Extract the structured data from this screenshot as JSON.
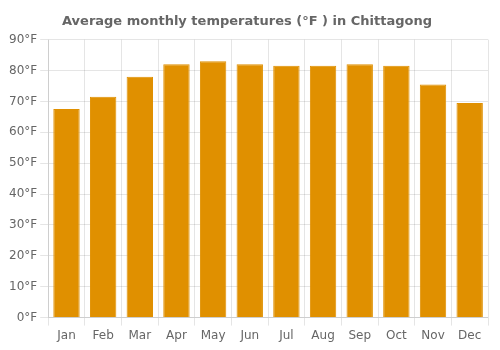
{
  "chart_data": {
    "type": "bar",
    "title": "Average monthly temperatures (°F ) in Chittagong",
    "categories": [
      "Jan",
      "Feb",
      "Mar",
      "Apr",
      "May",
      "Jun",
      "Jul",
      "Aug",
      "Sep",
      "Oct",
      "Nov",
      "Dec"
    ],
    "values": [
      67.5,
      71.5,
      78,
      82,
      83,
      82,
      81.5,
      81.5,
      82,
      81.5,
      75.5,
      69.5
    ],
    "color": "#E09000",
    "ylim": [
      0,
      90
    ],
    "yticks": [
      {
        "value": 0,
        "label": "0°F"
      },
      {
        "value": 10,
        "label": "10°F"
      },
      {
        "value": 20,
        "label": "20°F"
      },
      {
        "value": 30,
        "label": "30°F"
      },
      {
        "value": 40,
        "label": "40°F"
      },
      {
        "value": 50,
        "label": "50°F"
      },
      {
        "value": 60,
        "label": "60°F"
      },
      {
        "value": 70,
        "label": "70°F"
      },
      {
        "value": 80,
        "label": "80°F"
      },
      {
        "value": 90,
        "label": "90°F"
      }
    ],
    "grid": true
  }
}
